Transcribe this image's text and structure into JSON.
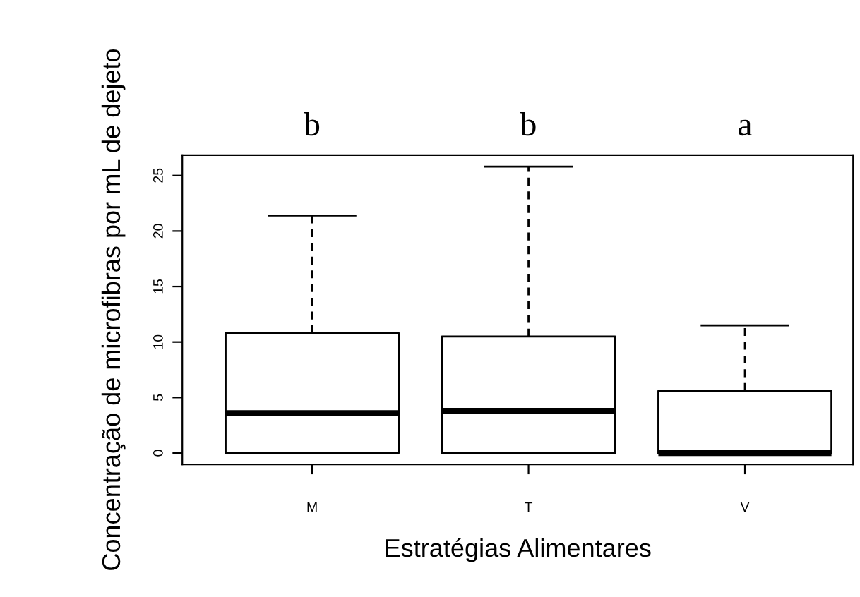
{
  "chart_data": {
    "type": "box",
    "xlabel": "Estratégias Alimentares",
    "ylabel": "Concentração de microfibras por mL de dejeto",
    "categories": [
      "M",
      "T",
      "V"
    ],
    "boxes": [
      {
        "low": 0,
        "q1": 0,
        "median": 3.6,
        "q3": 10.8,
        "high": 21.4
      },
      {
        "low": 0,
        "q1": 0,
        "median": 3.8,
        "q3": 10.5,
        "high": 25.8
      },
      {
        "low": 0,
        "q1": 0,
        "median": 0,
        "q3": 5.6,
        "high": 11.5
      }
    ],
    "ylim": [
      -1.03,
      26.83
    ],
    "yticks": [
      0,
      5,
      10,
      15,
      20,
      25
    ],
    "annotations": [
      "b",
      "b",
      "a"
    ]
  }
}
